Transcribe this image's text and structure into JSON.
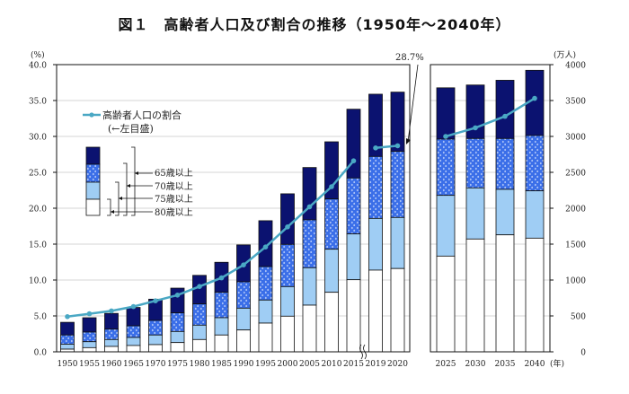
{
  "title": "図１　高齢者人口及び割合の推移（1950年～2040年）",
  "chart_data": {
    "type": "bar+line",
    "title": "図１　高齢者人口及び割合の推移（1950年～2040年）",
    "categories": [
      "1950",
      "1955",
      "1960",
      "1965",
      "1970",
      "1975",
      "1980",
      "1985",
      "1990",
      "1995",
      "2000",
      "2005",
      "2010",
      "2015",
      "2019",
      "2020",
      "2025",
      "2030",
      "2035",
      "2040"
    ],
    "x_unit": "(年)",
    "left_axis": {
      "unit": "(%)",
      "range": [
        0,
        40
      ],
      "ticks": [
        "0.0",
        "5.0",
        "10.0",
        "15.0",
        "20.0",
        "25.0",
        "30.0",
        "35.0",
        "40.0"
      ]
    },
    "right_axis": {
      "unit": "(万人)",
      "range": [
        0,
        4000
      ],
      "ticks": [
        "0",
        "500",
        "1000",
        "1500",
        "2000",
        "2500",
        "3000",
        "3500",
        "4000"
      ]
    },
    "grid": true,
    "stacked_series": [
      {
        "name": "65歳以上",
        "color": "#0b1270",
        "values": [
          411,
          475,
          535,
          618,
          733,
          887,
          1065,
          1247,
          1489,
          1826,
          2201,
          2567,
          2925,
          3379,
          3588,
          3617,
          3677,
          3716,
          3782,
          3921
        ]
      },
      {
        "name": "70歳以上",
        "color": "#3a6ee8",
        "values": [
          234,
          275,
          316,
          362,
          437,
          542,
          667,
          829,
          975,
          1187,
          1496,
          1838,
          2129,
          2421,
          2721,
          2791,
          2963,
          2971,
          2971,
          3013
        ]
      },
      {
        "name": "75歳以上",
        "color": "#9fcdf4",
        "values": [
          106,
          141,
          171,
          200,
          234,
          283,
          371,
          475,
          608,
          721,
          908,
          1171,
          1429,
          1642,
          1858,
          1871,
          2179,
          2283,
          2263,
          2242
        ]
      },
      {
        "name": "80歳以上",
        "color": "#ffffff",
        "values": [
          37,
          58,
          75,
          88,
          100,
          129,
          171,
          234,
          304,
          400,
          496,
          650,
          829,
          1004,
          1138,
          1160,
          1333,
          1571,
          1629,
          1583
        ]
      }
    ],
    "line_series": {
      "name": "高齢者人口の割合",
      "note": "(←左目盛)",
      "color": "#4aa8c4",
      "values": [
        4.9,
        5.3,
        5.7,
        6.3,
        7.1,
        7.9,
        9.1,
        10.3,
        12.1,
        14.6,
        17.4,
        20.2,
        23.0,
        26.6,
        28.4,
        28.7,
        30.0,
        31.2,
        32.8,
        35.3
      ]
    },
    "annotation": "28.7%",
    "legend": "top-left"
  }
}
